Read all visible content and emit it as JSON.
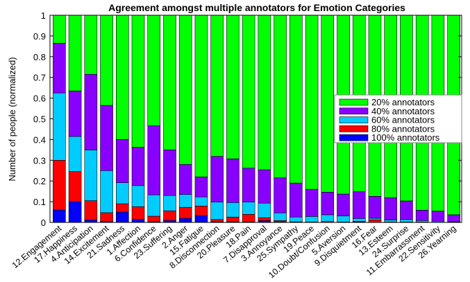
{
  "chart_data": {
    "type": "bar",
    "stacked": true,
    "title": "Agreement amongst multiple annotators for Emotion Categories",
    "xlabel": "",
    "ylabel": "Number of people (normalized)",
    "ylim": [
      0,
      1
    ],
    "yticks": [
      "0",
      "0.1",
      "0.2",
      "0.3",
      "0.4",
      "0.5",
      "0.6",
      "0.7",
      "0.8",
      "0.9",
      "1"
    ],
    "legend_position": "right",
    "grid": false,
    "categories": [
      "12.Engagement",
      "17.Happiness",
      "4.Anticipation",
      "14.Excitement",
      "21.Sadness",
      "1.Affection",
      "6.Confidence",
      "23.Suffering",
      "2.Anger",
      "15.Fatigue",
      "8.Disconnection",
      "20.Pleasure",
      "18.Pain",
      "7.Disapproval",
      "3.Annoyance",
      "25.Sympathy",
      "19.Peace",
      "10.Doubt/Confusion",
      "5.Aversion",
      "9.Disquietment",
      "16.Fear",
      "13.Esteem",
      "24.Surprise",
      "11.Embarrassment",
      "22.Sensitivity",
      "26.Yearning"
    ],
    "series": [
      {
        "name": "100% annotators",
        "color": "#0000ff",
        "values": [
          0.06,
          0.1,
          0.012,
          0.005,
          0.05,
          0.015,
          0.003,
          0.01,
          0.02,
          0.033,
          0.003,
          0.003,
          0.002,
          0.009,
          0.003,
          0,
          0,
          0,
          0,
          0.003,
          0,
          0,
          0,
          0,
          0,
          0
        ]
      },
      {
        "name": "80% annotators",
        "color": "#ff0000",
        "values": [
          0.24,
          0.145,
          0.093,
          0.042,
          0.04,
          0.061,
          0.027,
          0.046,
          0.053,
          0.046,
          0.011,
          0.023,
          0.037,
          0.014,
          0.006,
          0.003,
          0.002,
          0.004,
          0.002,
          0.002,
          0.012,
          0.002,
          0.002,
          0.002,
          0.001,
          0.001
        ]
      },
      {
        "name": "60% annotators",
        "color": "#00ccff",
        "values": [
          0.325,
          0.17,
          0.245,
          0.203,
          0.102,
          0.102,
          0.103,
          0.074,
          0.062,
          0.044,
          0.084,
          0.07,
          0.059,
          0.07,
          0.037,
          0.023,
          0.027,
          0.033,
          0.029,
          0.014,
          0.008,
          0.01,
          0.012,
          0.007,
          0.005,
          0.002
        ]
      },
      {
        "name": "40% annotators",
        "color": "#8800ff",
        "values": [
          0.24,
          0.22,
          0.365,
          0.315,
          0.208,
          0.185,
          0.333,
          0.22,
          0.145,
          0.097,
          0.221,
          0.211,
          0.164,
          0.161,
          0.169,
          0.164,
          0.131,
          0.109,
          0.106,
          0.129,
          0.106,
          0.107,
          0.09,
          0.05,
          0.049,
          0.034
        ]
      },
      {
        "name": "20% annotators",
        "color": "#00ff00",
        "values": [
          0.135,
          0.365,
          0.285,
          0.435,
          0.6,
          0.637,
          0.534,
          0.65,
          0.72,
          0.78,
          0.681,
          0.693,
          0.738,
          0.746,
          0.785,
          0.81,
          0.84,
          0.854,
          0.863,
          0.852,
          0.874,
          0.881,
          0.896,
          0.941,
          0.945,
          0.963
        ]
      }
    ]
  }
}
